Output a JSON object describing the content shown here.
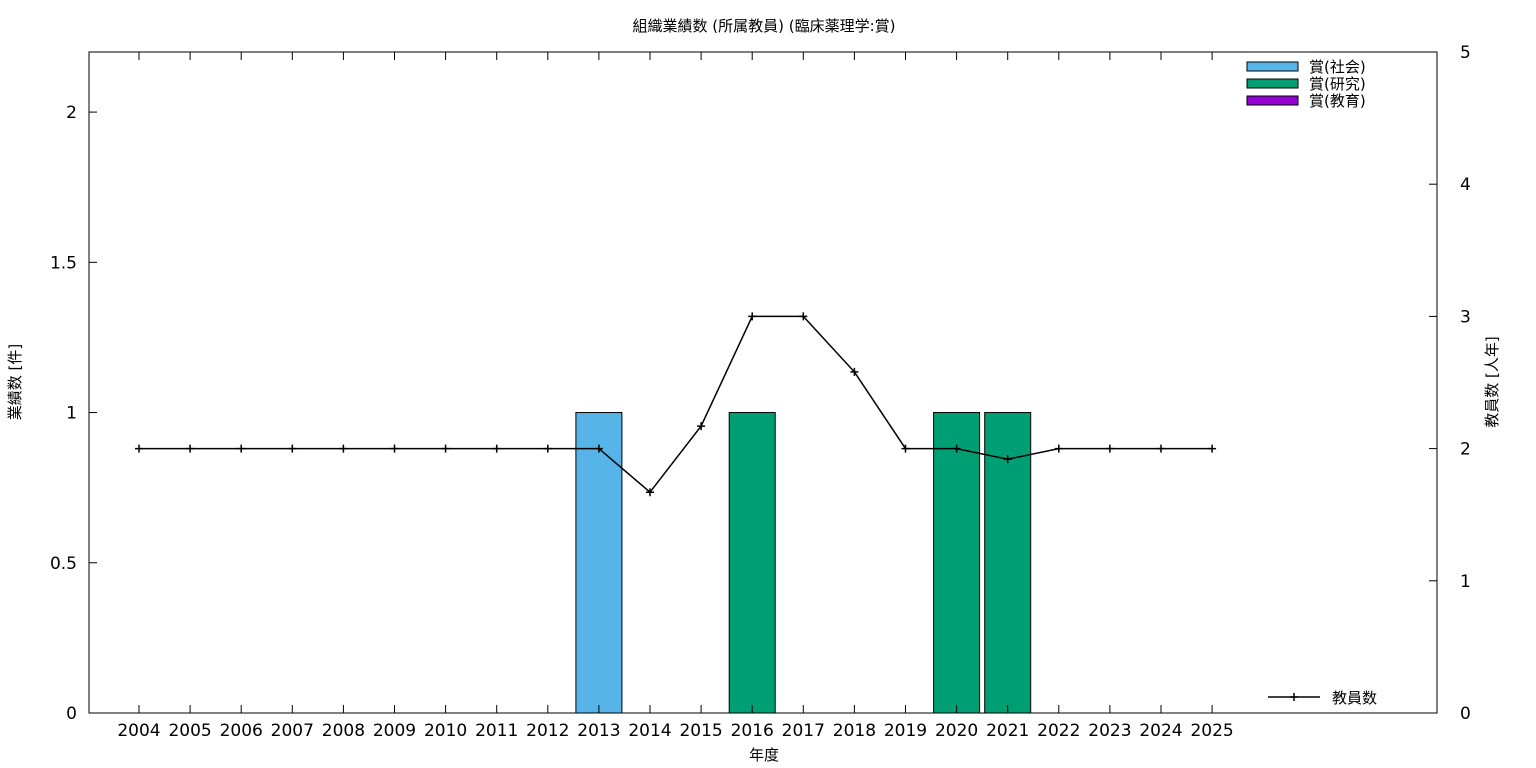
{
  "chart_data": {
    "type": "bar",
    "title": "組織業績数 (所属教員) (臨床薬理学:賞)",
    "xlabel": "年度",
    "ylabel": "業績数 [件]",
    "y2label": "教員数 [人年]",
    "categories": [
      "2004",
      "2005",
      "2006",
      "2007",
      "2008",
      "2009",
      "2010",
      "2011",
      "2012",
      "2013",
      "2014",
      "2015",
      "2016",
      "2017",
      "2018",
      "2019",
      "2020",
      "2021",
      "2022",
      "2023",
      "2024",
      "2025"
    ],
    "ylim": [
      0,
      2.2
    ],
    "yticks": [
      "0",
      "0.5",
      "1",
      "1.5",
      "2"
    ],
    "y2lim": [
      0,
      5
    ],
    "y2ticks": [
      "0",
      "1",
      "2",
      "3",
      "4",
      "5"
    ],
    "grid": false,
    "legend_position": "top-right",
    "series": [
      {
        "name": "賞(社会)",
        "color": "#56b4e9",
        "axis": "left",
        "kind": "bar",
        "values": [
          0,
          0,
          0,
          0,
          0,
          0,
          0,
          0,
          0,
          1,
          0,
          0,
          0,
          0,
          0,
          0,
          0,
          0,
          0,
          0,
          0,
          0
        ]
      },
      {
        "name": "賞(研究)",
        "color": "#009e73",
        "axis": "left",
        "kind": "bar",
        "values": [
          0,
          0,
          0,
          0,
          0,
          0,
          0,
          0,
          0,
          0,
          0,
          0,
          1,
          0,
          0,
          0,
          1,
          1,
          0,
          0,
          0,
          0
        ]
      },
      {
        "name": "賞(教育)",
        "color": "#9400d3",
        "axis": "left",
        "kind": "bar",
        "values": [
          0,
          0,
          0,
          0,
          0,
          0,
          0,
          0,
          0,
          0,
          0,
          0,
          0,
          0,
          0,
          0,
          0,
          0,
          0,
          0,
          0,
          0
        ]
      },
      {
        "name": "教員数",
        "color": "#000000",
        "axis": "right",
        "kind": "line",
        "values": [
          2,
          2,
          2,
          2,
          2,
          2,
          2,
          2,
          2,
          2,
          1.67,
          2.17,
          3,
          3,
          2.58,
          2,
          2,
          1.92,
          2,
          2,
          2,
          2
        ]
      }
    ]
  }
}
